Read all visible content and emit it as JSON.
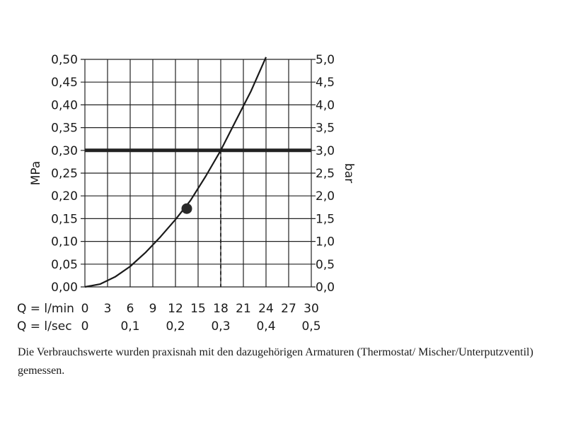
{
  "chart_data": {
    "type": "line",
    "title": "",
    "ylabel_left": "MPa",
    "ylabel_right": "bar",
    "xlabel_lmin": "Q = l/min",
    "xlabel_lsec": "Q = l/sec",
    "xlim": [
      0,
      30
    ],
    "ylim": [
      0,
      0.5
    ],
    "grid": true,
    "x_ticks_lmin": [
      "0",
      "3",
      "6",
      "9",
      "12",
      "15",
      "18",
      "21",
      "24",
      "27",
      "30"
    ],
    "x_ticks_lsec": [
      {
        "value": 0,
        "label": "0"
      },
      {
        "value": 6,
        "label": "0,1"
      },
      {
        "value": 12,
        "label": "0,2"
      },
      {
        "value": 18,
        "label": "0,3"
      },
      {
        "value": 24,
        "label": "0,4"
      },
      {
        "value": 30,
        "label": "0,5"
      }
    ],
    "y_ticks_mpa": [
      "0,00",
      "0,05",
      "0,10",
      "0,15",
      "0,20",
      "0,25",
      "0,30",
      "0,35",
      "0,40",
      "0,45",
      "0,50"
    ],
    "y_ticks_bar": [
      "0,0",
      "0,5",
      "1,0",
      "1,5",
      "2,0",
      "2,5",
      "3,0",
      "3,5",
      "4,0",
      "4,5",
      "5,0"
    ],
    "series": [
      {
        "x": [
          0,
          2,
          4,
          6,
          8,
          10,
          12,
          14,
          16,
          18,
          20,
          22,
          24
        ],
        "y": [
          0,
          0.006,
          0.022,
          0.045,
          0.075,
          0.11,
          0.148,
          0.19,
          0.243,
          0.3,
          0.365,
          0.43,
          0.505
        ]
      }
    ],
    "reference_line": {
      "y": 0.3
    },
    "reference_drop": {
      "x": 18,
      "y": 0.3
    },
    "marker": {
      "x": 13.5,
      "y": 0.172
    }
  },
  "caption": "Die Verbrauchswerte wurden praxisnah mit den dazugehörigen Armaturen (Thermostat/ Mischer/Unterputzventil) gemessen."
}
